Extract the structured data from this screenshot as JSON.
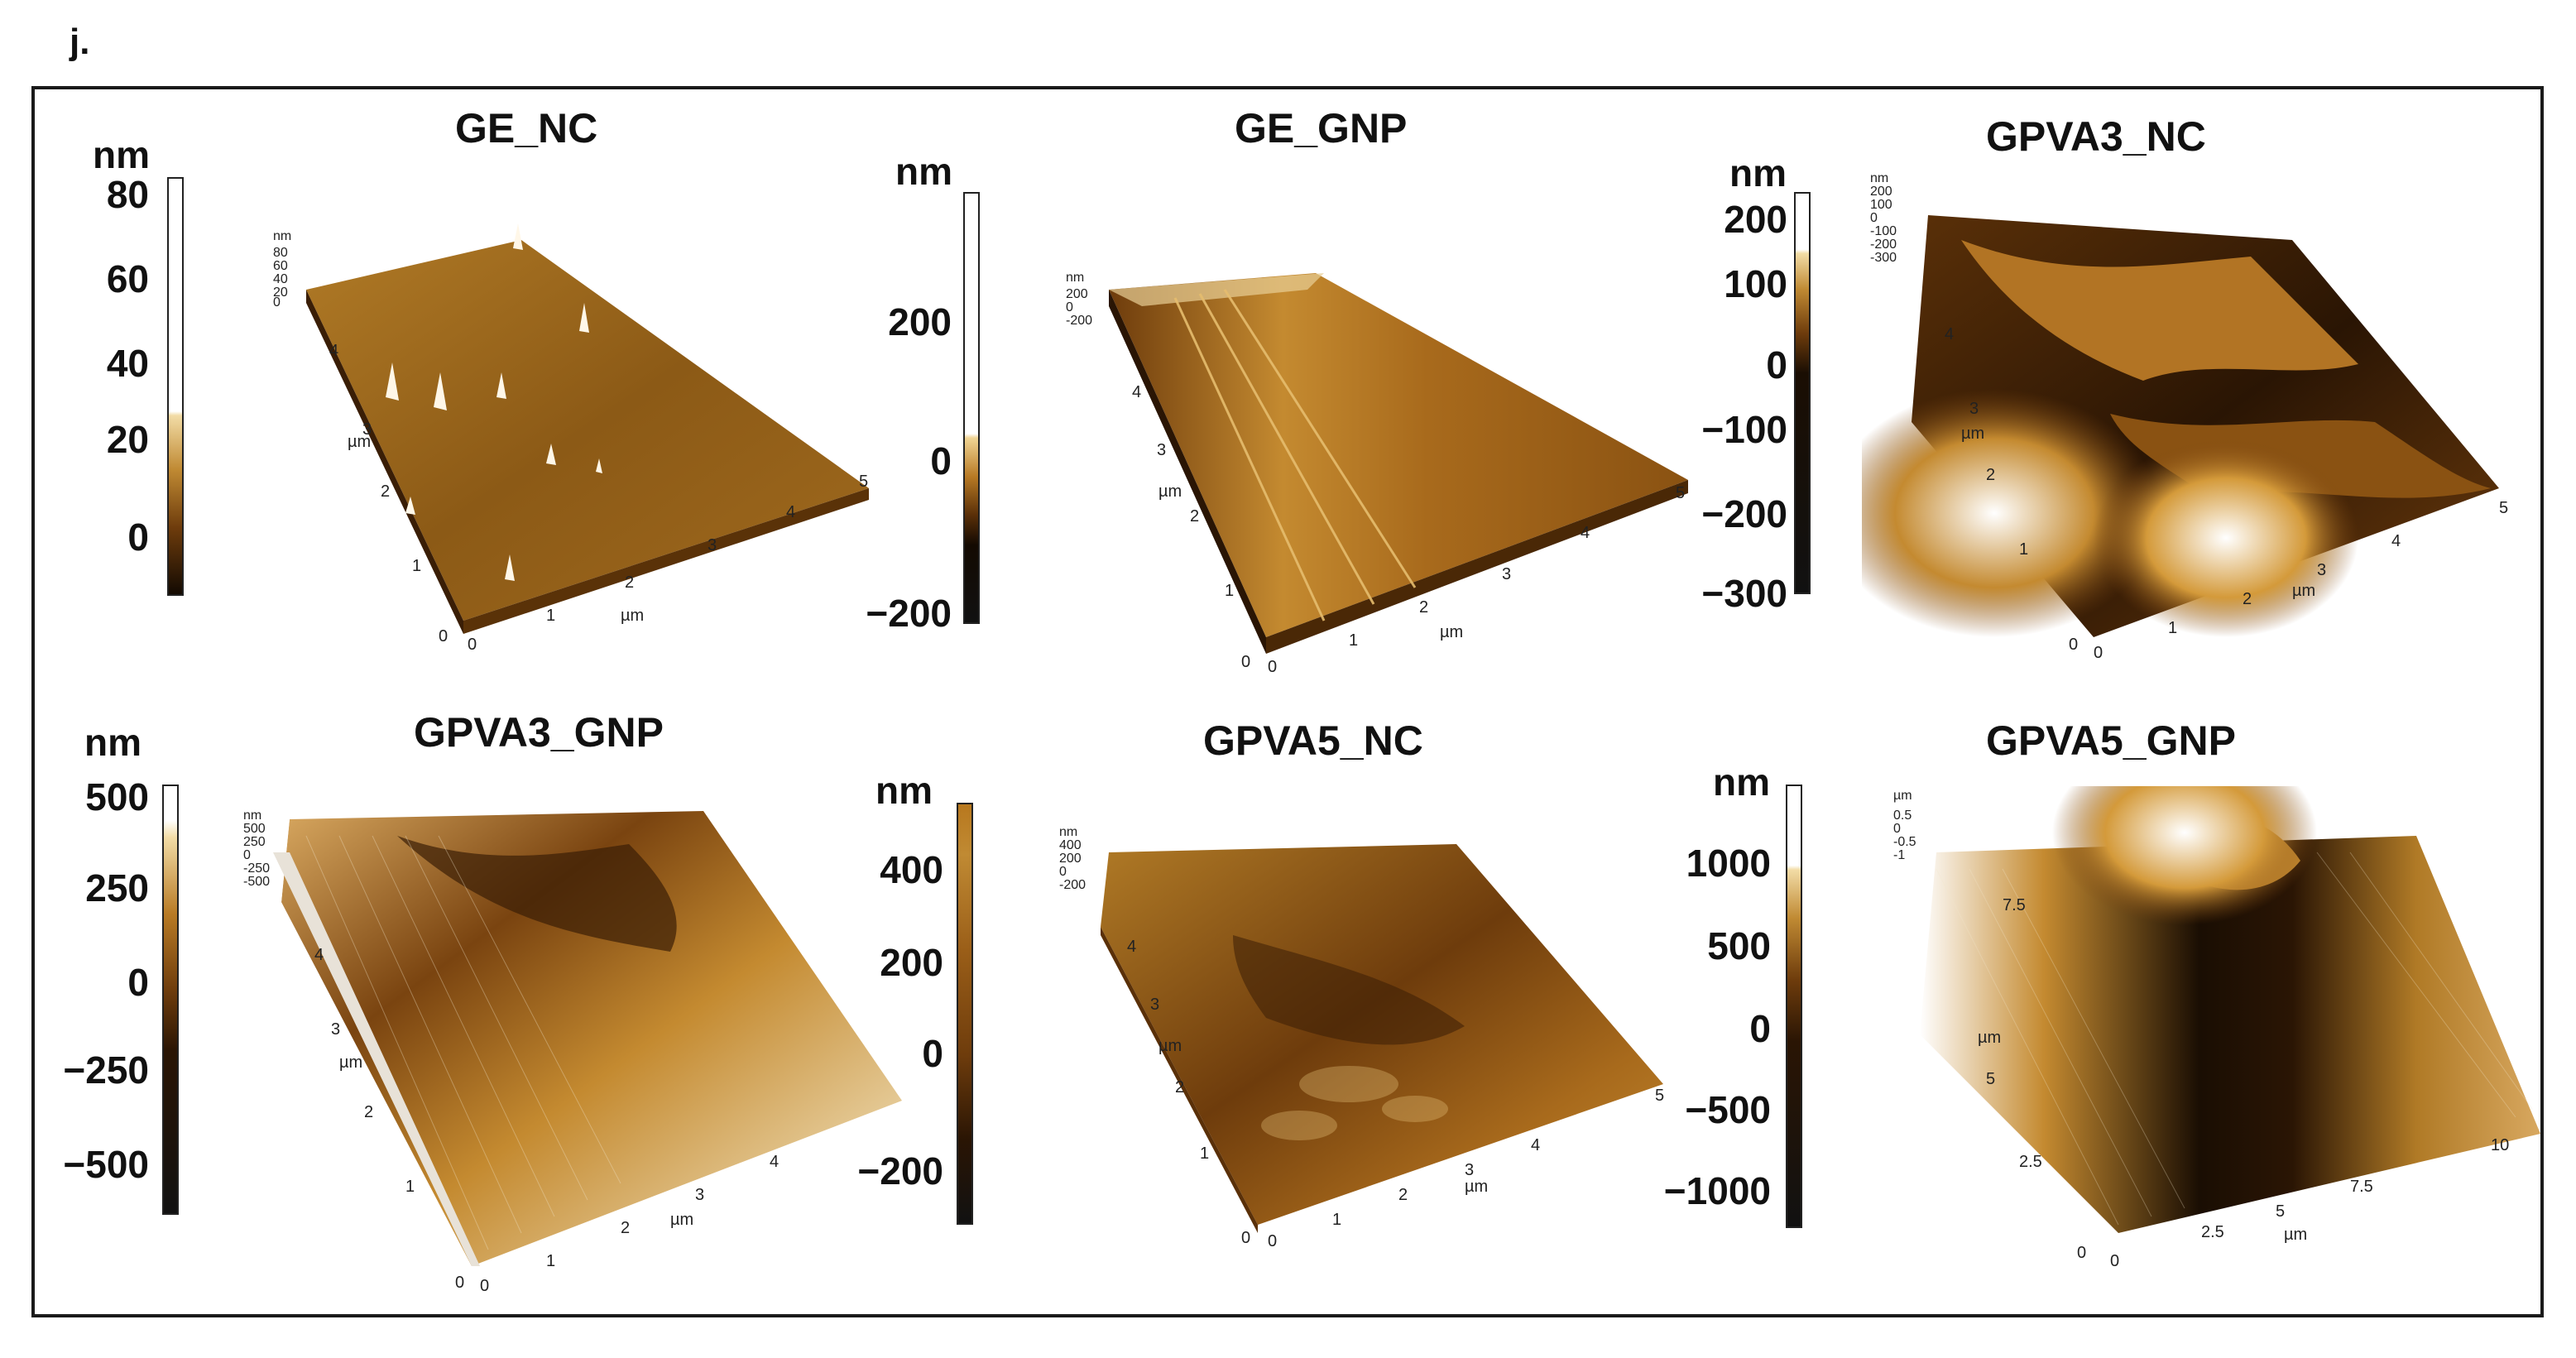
{
  "figure": {
    "label": "j.",
    "panels": [
      {
        "title": "GE_NC",
        "unit": "nm",
        "ticks": [
          "80",
          "60",
          "40",
          "20",
          "0"
        ],
        "z_axis": {
          "unit": "nm",
          "ticks": [
            "80",
            "60",
            "40",
            "20",
            "0"
          ]
        },
        "x_axis": {
          "unit": "µm",
          "ticks": [
            "0",
            "1",
            "2",
            "3",
            "4",
            "5"
          ]
        },
        "y_axis": {
          "unit": "µm",
          "ticks": [
            "0",
            "1",
            "2",
            "3",
            "4"
          ]
        }
      },
      {
        "title": "GE_GNP",
        "unit": "nm",
        "ticks": [
          "200",
          "0",
          "−200"
        ],
        "z_axis": {
          "unit": "nm",
          "ticks": [
            "200",
            "0",
            "-200"
          ]
        },
        "x_axis": {
          "unit": "µm",
          "ticks": [
            "0",
            "1",
            "2",
            "3",
            "4",
            "5"
          ]
        },
        "y_axis": {
          "unit": "µm",
          "ticks": [
            "0",
            "1",
            "2",
            "3",
            "4"
          ]
        }
      },
      {
        "title": "GPVA3_NC",
        "unit": "nm",
        "ticks": [
          "200",
          "100",
          "0",
          "−100",
          "−200",
          "−300"
        ],
        "z_axis": {
          "unit": "nm",
          "ticks": [
            "200",
            "100",
            "0",
            "-100",
            "-200",
            "-300"
          ]
        },
        "x_axis": {
          "unit": "µm",
          "ticks": [
            "0",
            "1",
            "2",
            "3",
            "4",
            "5"
          ]
        },
        "y_axis": {
          "unit": "µm",
          "ticks": [
            "0",
            "1",
            "2",
            "3",
            "4"
          ]
        }
      },
      {
        "title": "GPVA3_GNP",
        "unit": "nm",
        "ticks": [
          "500",
          "250",
          "0",
          "−250",
          "−500"
        ],
        "z_axis": {
          "unit": "nm",
          "ticks": [
            "500",
            "250",
            "0",
            "-250",
            "-500"
          ]
        },
        "x_axis": {
          "unit": "µm",
          "ticks": [
            "0",
            "1",
            "2",
            "3",
            "4"
          ]
        },
        "y_axis": {
          "unit": "µm",
          "ticks": [
            "0",
            "1",
            "2",
            "3",
            "4"
          ]
        }
      },
      {
        "title": "GPVA5_NC",
        "unit": "nm",
        "ticks": [
          "400",
          "200",
          "0",
          "−200"
        ],
        "z_axis": {
          "unit": "nm",
          "ticks": [
            "400",
            "200",
            "0",
            "-200"
          ]
        },
        "x_axis": {
          "unit": "µm",
          "ticks": [
            "0",
            "1",
            "2",
            "3",
            "4",
            "5"
          ]
        },
        "y_axis": {
          "unit": "µm",
          "ticks": [
            "0",
            "1",
            "2",
            "3",
            "4"
          ]
        }
      },
      {
        "title": "GPVA5_GNP",
        "unit": "nm",
        "ticks": [
          "1000",
          "500",
          "0",
          "−500",
          "−1000"
        ],
        "z_axis": {
          "unit": "µm",
          "ticks": [
            "0.5",
            "0",
            "-0.5",
            "-1"
          ]
        },
        "x_axis": {
          "unit": "µm",
          "ticks": [
            "0",
            "2.5",
            "5",
            "7.5",
            "10"
          ]
        },
        "y_axis": {
          "unit": "µm",
          "ticks": [
            "2.5",
            "5",
            "7.5"
          ]
        }
      }
    ]
  },
  "palette": {
    "dark": "#130a02",
    "brown": "#6e3c0c",
    "gold": "#b8781e",
    "light": "#e6c27a",
    "white": "#ffffff"
  }
}
